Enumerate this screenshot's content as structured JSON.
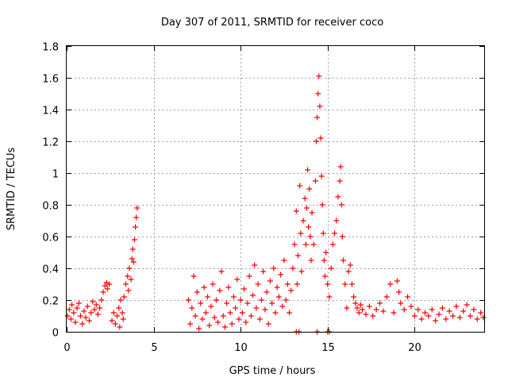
{
  "chart_data": {
    "type": "scatter",
    "title": "Day 307 of 2011, SRMTID for receiver coco",
    "xlabel": "GPS time / hours",
    "ylabel": "SRMTID / TECUs",
    "xlim": [
      0,
      24
    ],
    "ylim": [
      0,
      1.8
    ],
    "xticks": [
      0,
      5,
      10,
      15,
      20
    ],
    "xtick_labels": [
      "0",
      "5",
      "10",
      "15",
      "20"
    ],
    "yticks": [
      0,
      0.2,
      0.4,
      0.6,
      0.8,
      1.0,
      1.2,
      1.4,
      1.6,
      1.8
    ],
    "ytick_labels": [
      "0",
      "0.2",
      "0.4",
      "0.6",
      "0.8",
      "1",
      "1.2",
      "1.4",
      "1.6",
      "1.8"
    ],
    "grid": true,
    "marker": "+",
    "series": [
      {
        "name": "SRMTID",
        "color": "#ff0000",
        "points": [
          [
            0.05,
            0.1
          ],
          [
            0.15,
            0.14
          ],
          [
            0.25,
            0.08
          ],
          [
            0.3,
            0.17
          ],
          [
            0.4,
            0.12
          ],
          [
            0.5,
            0.06
          ],
          [
            0.6,
            0.15
          ],
          [
            0.7,
            0.18
          ],
          [
            0.8,
            0.1
          ],
          [
            0.9,
            0.05
          ],
          [
            1.0,
            0.13
          ],
          [
            1.1,
            0.09
          ],
          [
            1.2,
            0.16
          ],
          [
            1.3,
            0.07
          ],
          [
            1.4,
            0.12
          ],
          [
            1.5,
            0.19
          ],
          [
            1.6,
            0.14
          ],
          [
            1.7,
            0.17
          ],
          [
            1.8,
            0.11
          ],
          [
            1.9,
            0.15
          ],
          [
            2.0,
            0.2
          ],
          [
            2.1,
            0.25
          ],
          [
            2.2,
            0.29
          ],
          [
            2.3,
            0.31
          ],
          [
            2.35,
            0.27
          ],
          [
            2.45,
            0.3
          ],
          [
            2.6,
            0.07
          ],
          [
            2.7,
            0.12
          ],
          [
            2.8,
            0.05
          ],
          [
            2.9,
            0.1
          ],
          [
            3.0,
            0.15
          ],
          [
            3.05,
            0.03
          ],
          [
            3.1,
            0.2
          ],
          [
            3.2,
            0.12
          ],
          [
            3.25,
            0.08
          ],
          [
            3.3,
            0.22
          ],
          [
            3.4,
            0.3
          ],
          [
            3.5,
            0.35
          ],
          [
            3.55,
            0.26
          ],
          [
            3.6,
            0.4
          ],
          [
            3.7,
            0.33
          ],
          [
            3.75,
            0.46
          ],
          [
            3.8,
            0.52
          ],
          [
            3.85,
            0.44
          ],
          [
            3.9,
            0.58
          ],
          [
            3.95,
            0.66
          ],
          [
            4.0,
            0.72
          ],
          [
            4.05,
            0.78
          ],
          [
            7.0,
            0.2
          ],
          [
            7.1,
            0.05
          ],
          [
            7.2,
            0.15
          ],
          [
            7.3,
            0.35
          ],
          [
            7.4,
            0.1
          ],
          [
            7.5,
            0.25
          ],
          [
            7.6,
            0.02
          ],
          [
            7.7,
            0.18
          ],
          [
            7.8,
            0.08
          ],
          [
            7.9,
            0.28
          ],
          [
            8.0,
            0.12
          ],
          [
            8.1,
            0.22
          ],
          [
            8.2,
            0.04
          ],
          [
            8.3,
            0.16
          ],
          [
            8.4,
            0.3
          ],
          [
            8.5,
            0.09
          ],
          [
            8.6,
            0.2
          ],
          [
            8.7,
            0.06
          ],
          [
            8.8,
            0.26
          ],
          [
            8.9,
            0.38
          ],
          [
            9.0,
            0.1
          ],
          [
            9.1,
            0.03
          ],
          [
            9.2,
            0.18
          ],
          [
            9.3,
            0.28
          ],
          [
            9.4,
            0.12
          ],
          [
            9.5,
            0.05
          ],
          [
            9.6,
            0.22
          ],
          [
            9.7,
            0.15
          ],
          [
            9.8,
            0.33
          ],
          [
            9.9,
            0.08
          ],
          [
            10.0,
            0.2
          ],
          [
            10.1,
            0.12
          ],
          [
            10.2,
            0.27
          ],
          [
            10.3,
            0.06
          ],
          [
            10.4,
            0.18
          ],
          [
            10.5,
            0.35
          ],
          [
            10.6,
            0.1
          ],
          [
            10.7,
            0.23
          ],
          [
            10.8,
            0.42
          ],
          [
            10.9,
            0.15
          ],
          [
            11.0,
            0.3
          ],
          [
            11.1,
            0.08
          ],
          [
            11.2,
            0.2
          ],
          [
            11.3,
            0.38
          ],
          [
            11.4,
            0.14
          ],
          [
            11.5,
            0.25
          ],
          [
            11.6,
            0.05
          ],
          [
            11.7,
            0.32
          ],
          [
            11.8,
            0.18
          ],
          [
            11.9,
            0.4
          ],
          [
            12.0,
            0.12
          ],
          [
            12.1,
            0.28
          ],
          [
            12.2,
            0.22
          ],
          [
            12.3,
            0.36
          ],
          [
            12.4,
            0.16
          ],
          [
            12.5,
            0.45
          ],
          [
            12.6,
            0.2
          ],
          [
            12.7,
            0.3
          ],
          [
            12.8,
            0.12
          ],
          [
            12.9,
            0.26
          ],
          [
            13.0,
            0.4
          ],
          [
            13.1,
            0.55
          ],
          [
            13.2,
            0.76
          ],
          [
            13.25,
            0.3
          ],
          [
            13.3,
            0.48
          ],
          [
            13.4,
            0.92
          ],
          [
            13.45,
            0.62
          ],
          [
            13.5,
            0.38
          ],
          [
            13.6,
            0.7
          ],
          [
            13.7,
            0.84
          ],
          [
            13.75,
            0.55
          ],
          [
            13.8,
            0.78
          ],
          [
            13.85,
            1.02
          ],
          [
            13.9,
            0.66
          ],
          [
            13.95,
            0.9
          ],
          [
            14.0,
            0.6
          ],
          [
            14.05,
            0.45
          ],
          [
            14.1,
            0.75
          ],
          [
            14.2,
            0.55
          ],
          [
            14.3,
            0.95
          ],
          [
            14.35,
            1.2
          ],
          [
            14.4,
            1.35
          ],
          [
            14.45,
            1.5
          ],
          [
            14.5,
            1.61
          ],
          [
            14.55,
            1.42
          ],
          [
            14.6,
            1.22
          ],
          [
            14.65,
            0.98
          ],
          [
            14.7,
            0.8
          ],
          [
            14.75,
            0.62
          ],
          [
            14.8,
            0.45
          ],
          [
            14.85,
            0.35
          ],
          [
            14.9,
            0.5
          ],
          [
            15.0,
            0.3
          ],
          [
            15.1,
            0.22
          ],
          [
            15.2,
            0.4
          ],
          [
            15.3,
            0.55
          ],
          [
            15.4,
            0.62
          ],
          [
            15.5,
            0.7
          ],
          [
            15.6,
            0.85
          ],
          [
            15.7,
            0.95
          ],
          [
            15.75,
            1.04
          ],
          [
            15.8,
            0.8
          ],
          [
            15.85,
            0.6
          ],
          [
            15.9,
            0.45
          ],
          [
            16.0,
            0.3
          ],
          [
            16.1,
            0.15
          ],
          [
            16.2,
            0.38
          ],
          [
            16.3,
            0.42
          ],
          [
            16.4,
            0.3
          ],
          [
            16.5,
            0.22
          ],
          [
            16.6,
            0.18
          ],
          [
            16.7,
            0.15
          ],
          [
            16.8,
            0.12
          ],
          [
            16.9,
            0.17
          ],
          [
            17.0,
            0.14
          ],
          [
            17.2,
            0.11
          ],
          [
            17.4,
            0.16
          ],
          [
            17.6,
            0.1
          ],
          [
            17.8,
            0.14
          ],
          [
            18.0,
            0.18
          ],
          [
            18.2,
            0.13
          ],
          [
            18.4,
            0.22
          ],
          [
            18.6,
            0.3
          ],
          [
            18.8,
            0.12
          ],
          [
            19.0,
            0.32
          ],
          [
            19.1,
            0.25
          ],
          [
            19.2,
            0.18
          ],
          [
            19.4,
            0.14
          ],
          [
            19.6,
            0.22
          ],
          [
            19.8,
            0.16
          ],
          [
            20.0,
            0.1
          ],
          [
            20.2,
            0.14
          ],
          [
            20.4,
            0.08
          ],
          [
            20.6,
            0.12
          ],
          [
            20.8,
            0.1
          ],
          [
            21.0,
            0.14
          ],
          [
            21.2,
            0.07
          ],
          [
            21.4,
            0.11
          ],
          [
            21.6,
            0.15
          ],
          [
            21.8,
            0.08
          ],
          [
            22.0,
            0.13
          ],
          [
            22.2,
            0.1
          ],
          [
            22.4,
            0.16
          ],
          [
            22.6,
            0.09
          ],
          [
            22.8,
            0.13
          ],
          [
            23.0,
            0.17
          ],
          [
            23.2,
            0.1
          ],
          [
            23.4,
            0.14
          ],
          [
            23.6,
            0.08
          ],
          [
            23.8,
            0.12
          ],
          [
            23.95,
            0.09
          ],
          [
            13.2,
            0.0
          ],
          [
            13.35,
            0.0
          ],
          [
            15.0,
            0.0
          ],
          [
            15.1,
            0.0
          ],
          [
            14.4,
            0.0
          ]
        ]
      }
    ]
  }
}
